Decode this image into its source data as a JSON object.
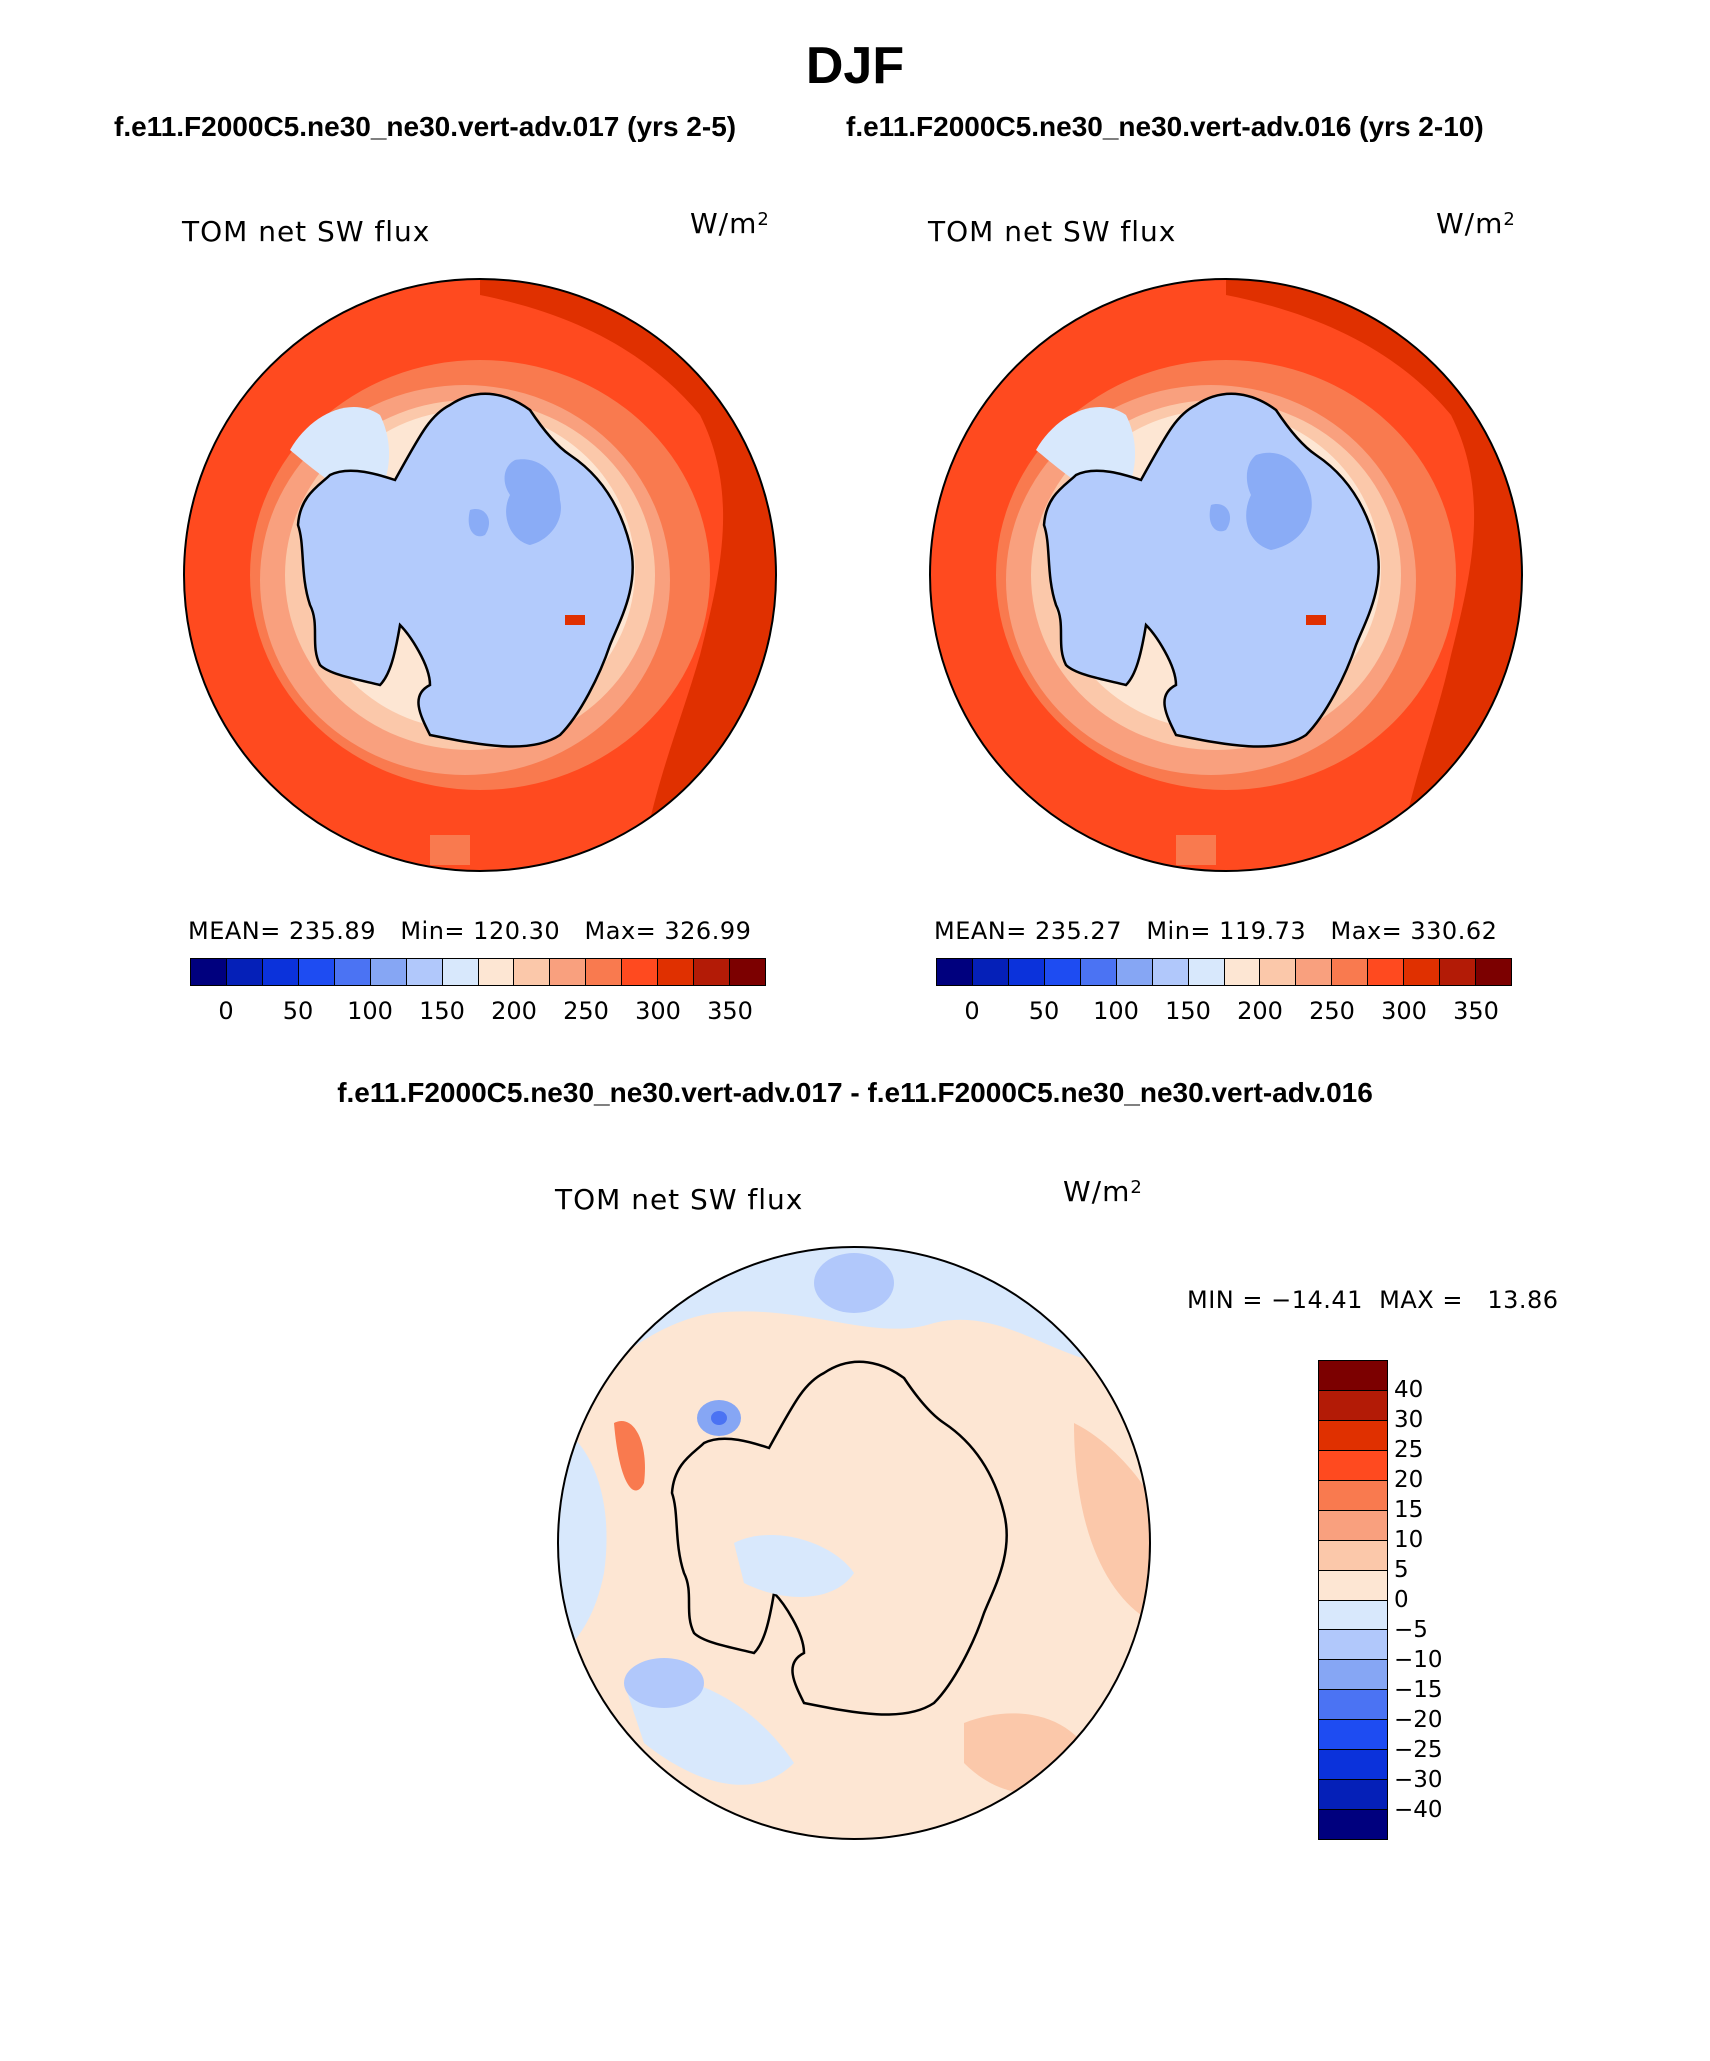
{
  "header": {
    "season": "DJF",
    "case_left": "f.e11.F2000C5.ne30_ne30.vert-adv.017 (yrs 2-5)",
    "case_right": "f.e11.F2000C5.ne30_ne30.vert-adv.016 (yrs 2-10)"
  },
  "colors": {
    "warm_bg": "#ff4a1f",
    "warm_dark": "#e03000",
    "ice_blue": "#b3cbfc",
    "ice_mid": "#8aacf6",
    "pale_blue": "#d8e8fc",
    "pale_orange": "#fde6d3",
    "light_orange": "#f9c3a2"
  },
  "panels": [
    {
      "label": "TOM net SW flux",
      "unit_base": "W/m",
      "unit_exp": "2",
      "stats": "MEAN= 235.89   Min= 120.30   Max= 326.99",
      "mean": 235.89,
      "min": 120.3,
      "max": 326.99
    },
    {
      "label": "TOM net SW flux",
      "unit_base": "W/m",
      "unit_exp": "2",
      "stats": "MEAN= 235.27   Min= 119.73   Max= 330.62",
      "mean": 235.27,
      "min": 119.73,
      "max": 330.62
    }
  ],
  "colorbar_abs": {
    "colors": [
      "#00007e",
      "#0520b8",
      "#0b32db",
      "#1e4cf2",
      "#4b73f3",
      "#86a6f4",
      "#b1c8fb",
      "#d8e8fc",
      "#fde6d3",
      "#fbc8aa",
      "#f9a07e",
      "#f97a4f",
      "#ff4a1f",
      "#e03000",
      "#b31b06",
      "#7c0000"
    ],
    "ticks": [
      "0",
      "50",
      "100",
      "150",
      "200",
      "250",
      "300",
      "350"
    ]
  },
  "difference": {
    "title": "f.e11.F2000C5.ne30_ne30.vert-adv.017 - f.e11.F2000C5.ne30_ne30.vert-adv.016",
    "label": "TOM net SW flux",
    "unit_base": "W/m",
    "unit_exp": "2",
    "minmax": "MIN = −14.41  MAX =   13.86",
    "min": -14.41,
    "max": 13.86,
    "colorbar": {
      "colors": [
        "#7c0000",
        "#b31b06",
        "#e03000",
        "#ff4a1f",
        "#f97a4f",
        "#f9a07e",
        "#fbc8aa",
        "#fde6d3",
        "#d8e8fc",
        "#b1c8fb",
        "#86a6f4",
        "#4b73f3",
        "#1e4cf2",
        "#0b32db",
        "#0520b8",
        "#00007e"
      ],
      "ticks": [
        "40",
        "30",
        "25",
        "20",
        "15",
        "10",
        "5",
        "0",
        "−5",
        "−10",
        "−15",
        "−20",
        "−25",
        "−30",
        "−40"
      ]
    }
  }
}
